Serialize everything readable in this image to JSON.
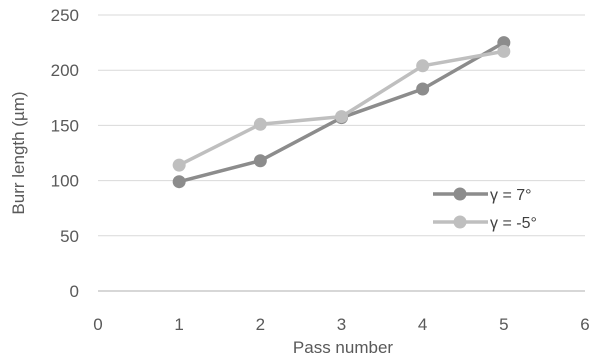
{
  "chart_data": {
    "type": "line",
    "title": "",
    "xlabel": "Pass number",
    "ylabel": "Burr length (µm)",
    "xlim": [
      0,
      6
    ],
    "ylim": [
      0,
      250
    ],
    "x_ticks": [
      0,
      1,
      2,
      3,
      4,
      5,
      6
    ],
    "y_ticks": [
      0,
      50,
      100,
      150,
      200,
      250
    ],
    "grid": "horizontal",
    "legend_position": "right",
    "series": [
      {
        "name": "γ = 7°",
        "color": "#8c8c8c",
        "x": [
          1,
          2,
          3,
          4,
          5
        ],
        "y": [
          99,
          118,
          157,
          183,
          225
        ]
      },
      {
        "name": "γ = -5°",
        "color": "#bfbfbf",
        "x": [
          1,
          2,
          3,
          4,
          5
        ],
        "y": [
          114,
          151,
          158,
          204,
          217
        ]
      }
    ]
  }
}
